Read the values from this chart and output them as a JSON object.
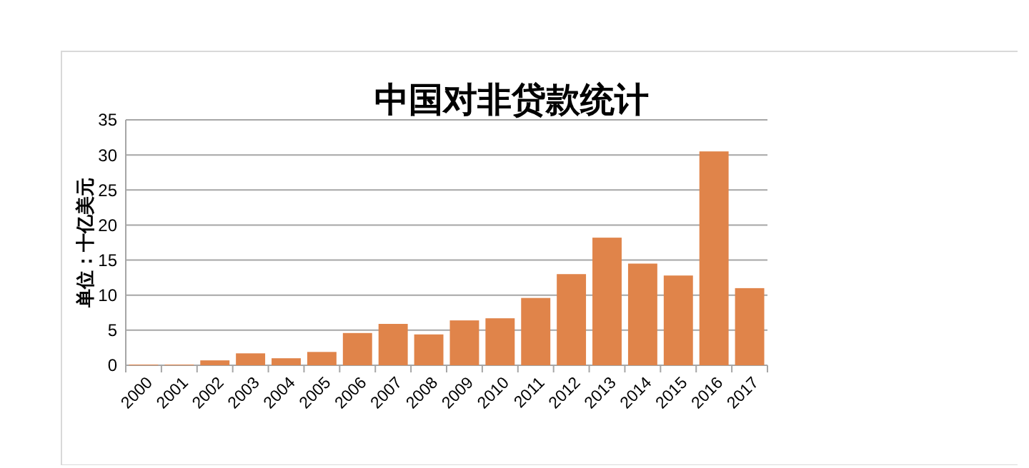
{
  "chart_data": {
    "type": "bar",
    "title": "中国对非贷款统计",
    "ylabel": "单位：十亿美元",
    "categories": [
      "2000",
      "2001",
      "2002",
      "2003",
      "2004",
      "2005",
      "2006",
      "2007",
      "2008",
      "2009",
      "2010",
      "2011",
      "2012",
      "2013",
      "2014",
      "2015",
      "2016",
      "2017"
    ],
    "values": [
      0.1,
      0.1,
      0.7,
      1.7,
      1.0,
      1.9,
      4.6,
      5.9,
      4.4,
      6.4,
      6.7,
      9.6,
      13.0,
      18.2,
      14.5,
      12.8,
      30.5,
      11.0
    ],
    "color": "#e0844a",
    "ylim": [
      0,
      35
    ],
    "yticks": [
      0,
      5,
      10,
      15,
      20,
      25,
      30,
      35
    ],
    "grid": "y"
  }
}
